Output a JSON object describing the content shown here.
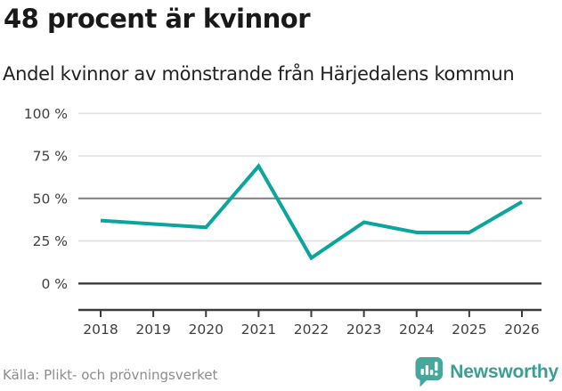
{
  "header": {
    "title": "48 procent är kvinnor",
    "subtitle": "Andel kvinnor av mönstrande från Härjedalens kommun"
  },
  "chart_data": {
    "type": "line",
    "x": [
      "2018",
      "2019",
      "2020",
      "2021",
      "2022",
      "2023",
      "2024",
      "2025",
      "2026"
    ],
    "series": [
      {
        "name": "Andel kvinnor av mönstrande",
        "values": [
          37,
          35,
          33,
          69,
          15,
          36,
          30,
          30,
          48
        ]
      }
    ],
    "title": "48 procent är kvinnor",
    "subtitle": "Andel kvinnor av mönstrande från Härjedalens kommun",
    "xlabel": "",
    "ylabel": "",
    "unit": "%",
    "ylim": [
      0,
      100
    ],
    "y_ticks": [
      0,
      25,
      50,
      75,
      100
    ],
    "y_tick_suffix": " %",
    "grid": "on",
    "emphasized_gridline": 50,
    "baseline_gridline": 0,
    "legend_position": "none",
    "colors": {
      "line": "#0aa59c",
      "grid_light": "#e0e0e0",
      "grid_emphasis": "#7c7c7c",
      "axis_dark": "#3c3c3c",
      "tick_text": "#404040"
    }
  },
  "footer": {
    "source": "Källa: Plikt- och prövningsverket",
    "brand": {
      "name": "Newsworthy",
      "icon": "bar-chart-bubble-icon",
      "icon_color": "#45a89b",
      "text_color": "#3b9e93"
    }
  }
}
